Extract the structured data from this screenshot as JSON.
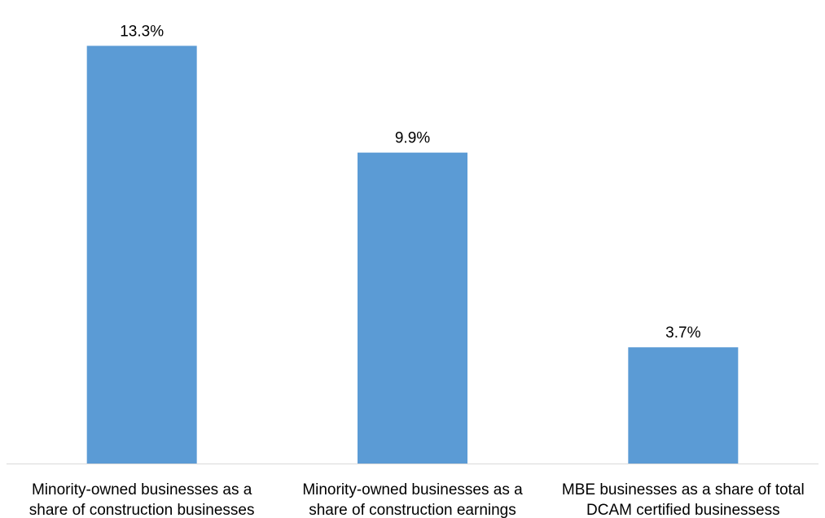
{
  "chart_data": {
    "type": "bar",
    "title": "",
    "xlabel": "",
    "ylabel": "",
    "categories": [
      [
        "Minority-owned businesses as a",
        "share of construction businesses"
      ],
      [
        "Minority-owned businesses as a",
        "share of construction earnings"
      ],
      [
        "MBE businesses as a share of total",
        "DCAM certified businessess"
      ]
    ],
    "values": [
      13.3,
      9.9,
      3.7
    ],
    "data_labels": [
      "13.3%",
      "9.9%",
      "3.7%"
    ],
    "ylim": [
      0,
      14.5
    ],
    "grid": false,
    "legend": "none",
    "bar_color": "#5b9bd5",
    "axis_color": "#d9d9d9"
  }
}
